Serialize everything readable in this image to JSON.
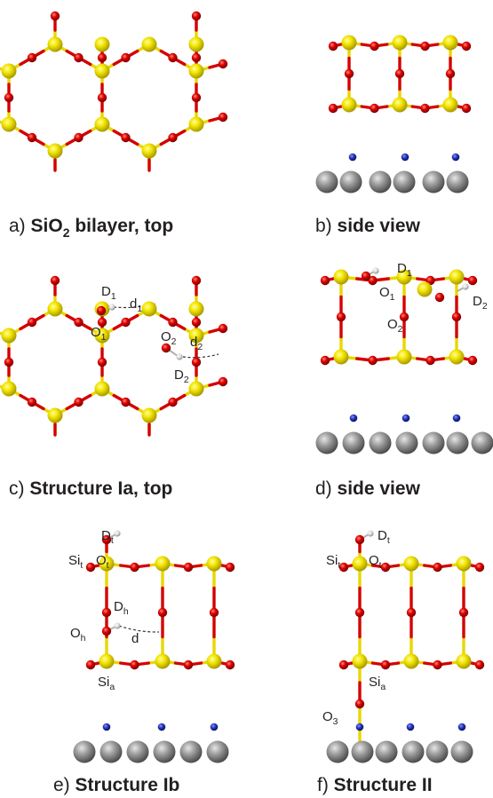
{
  "captions": {
    "a": {
      "pre": "a) ",
      "bold": "SiO",
      "sub": "2",
      "rest": " bilayer, top"
    },
    "b": {
      "pre": "b) ",
      "bold": "side view"
    },
    "c": {
      "pre": "c) ",
      "bold": "Structure Ia, top"
    },
    "d": {
      "pre": "d) ",
      "bold": "side view"
    },
    "e": {
      "pre": "e) ",
      "bold": "Structure Ib"
    },
    "f": {
      "pre": "f) ",
      "bold": "Structure II"
    }
  },
  "labels": {
    "D": "D",
    "O": "O",
    "Si": "Si",
    "d": "d",
    "s1": "1",
    "s2": "2",
    "s3": "3",
    "st": "t",
    "sh": "h",
    "sa": "a"
  },
  "colors": {
    "silicon": "#e8d700",
    "oxygen": "#d40000",
    "deuterium": "#d9d9d9",
    "substrate_metal": "#8a8a8a",
    "adsorbate_blue": "#1f2fa8"
  }
}
